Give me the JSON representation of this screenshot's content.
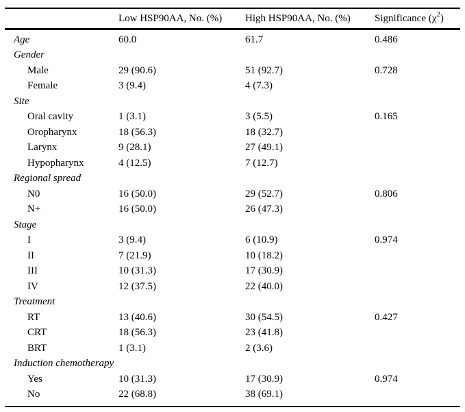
{
  "table": {
    "columns": {
      "label": "",
      "low": "Low HSP90AA, No. (%)",
      "high": "High HSP90AA, No. (%)",
      "significance_prefix": "Significance (",
      "significance_chi": "χ",
      "significance_sup": "2",
      "significance_suffix": ")"
    },
    "rows": [
      {
        "type": "group",
        "label": "Age",
        "low": "60.0",
        "high": "61.7",
        "sig": "0.486"
      },
      {
        "type": "group",
        "label": "Gender",
        "low": "",
        "high": "",
        "sig": ""
      },
      {
        "type": "item",
        "label": "Male",
        "low": "29 (90.6)",
        "high": "51 (92.7)",
        "sig": "0.728"
      },
      {
        "type": "item",
        "label": "Female",
        "low": "3 (9.4)",
        "high": "4 (7.3)",
        "sig": ""
      },
      {
        "type": "group",
        "label": "Site",
        "low": "",
        "high": "",
        "sig": ""
      },
      {
        "type": "item",
        "label": "Oral cavity",
        "low": "1 (3.1)",
        "high": "3 (5.5)",
        "sig": "0.165"
      },
      {
        "type": "item",
        "label": "Oropharynx",
        "low": "18 (56.3)",
        "high": "18 (32.7)",
        "sig": ""
      },
      {
        "type": "item",
        "label": "Larynx",
        "low": "9 (28.1)",
        "high": "27 (49.1)",
        "sig": ""
      },
      {
        "type": "item",
        "label": "Hypopharynx",
        "low": "4 (12.5)",
        "high": "7 (12.7)",
        "sig": ""
      },
      {
        "type": "group",
        "label": "Regional spread",
        "low": "",
        "high": "",
        "sig": ""
      },
      {
        "type": "item",
        "label": "N0",
        "low": "16 (50.0)",
        "high": "29 (52.7)",
        "sig": "0.806"
      },
      {
        "type": "item",
        "label": "N+",
        "low": "16 (50.0)",
        "high": "26 (47.3)",
        "sig": ""
      },
      {
        "type": "group",
        "label": "Stage",
        "low": "",
        "high": "",
        "sig": ""
      },
      {
        "type": "item",
        "label": "I",
        "low": "3 (9.4)",
        "high": "6 (10.9)",
        "sig": "0.974"
      },
      {
        "type": "item",
        "label": "II",
        "low": "7 (21.9)",
        "high": "10 (18.2)",
        "sig": ""
      },
      {
        "type": "item",
        "label": "III",
        "low": "10 (31.3)",
        "high": "17 (30.9)",
        "sig": ""
      },
      {
        "type": "item",
        "label": "IV",
        "low": "12 (37.5)",
        "high": "22 (40.0)",
        "sig": ""
      },
      {
        "type": "group",
        "label": "Treatment",
        "low": "",
        "high": "",
        "sig": ""
      },
      {
        "type": "item",
        "label": "RT",
        "low": "13 (40.6)",
        "high": "30 (54.5)",
        "sig": "0.427"
      },
      {
        "type": "item",
        "label": "CRT",
        "low": "18 (56.3)",
        "high": "23 (41.8)",
        "sig": ""
      },
      {
        "type": "item",
        "label": "BRT",
        "low": "1 (3.1)",
        "high": "2 (3.6)",
        "sig": ""
      },
      {
        "type": "group",
        "label": "Induction chemotherapy",
        "low": "",
        "high": "",
        "sig": ""
      },
      {
        "type": "item",
        "label": "Yes",
        "low": "10 (31.3)",
        "high": "17 (30.9)",
        "sig": "0.974"
      },
      {
        "type": "item",
        "label": "No",
        "low": "22 (68.8)",
        "high": "38 (69.1)",
        "sig": ""
      }
    ]
  },
  "chart_data": {
    "type": "table",
    "columns": [
      "",
      "Low HSP90AA, No. (%)",
      "High HSP90AA, No. (%)",
      "Significance (χ2)"
    ],
    "rows": [
      [
        "Age",
        "60.0",
        "61.7",
        "0.486"
      ],
      [
        "Gender",
        "",
        "",
        ""
      ],
      [
        "Male",
        "29 (90.6)",
        "51 (92.7)",
        "0.728"
      ],
      [
        "Female",
        "3 (9.4)",
        "4 (7.3)",
        ""
      ],
      [
        "Site",
        "",
        "",
        ""
      ],
      [
        "Oral cavity",
        "1 (3.1)",
        "3 (5.5)",
        "0.165"
      ],
      [
        "Oropharynx",
        "18 (56.3)",
        "18 (32.7)",
        ""
      ],
      [
        "Larynx",
        "9 (28.1)",
        "27 (49.1)",
        ""
      ],
      [
        "Hypopharynx",
        "4 (12.5)",
        "7 (12.7)",
        ""
      ],
      [
        "Regional spread",
        "",
        "",
        ""
      ],
      [
        "N0",
        "16 (50.0)",
        "29 (52.7)",
        "0.806"
      ],
      [
        "N+",
        "16 (50.0)",
        "26 (47.3)",
        ""
      ],
      [
        "Stage",
        "",
        "",
        ""
      ],
      [
        "I",
        "3 (9.4)",
        "6 (10.9)",
        "0.974"
      ],
      [
        "II",
        "7 (21.9)",
        "10 (18.2)",
        ""
      ],
      [
        "III",
        "10 (31.3)",
        "17 (30.9)",
        ""
      ],
      [
        "IV",
        "12 (37.5)",
        "22 (40.0)",
        ""
      ],
      [
        "Treatment",
        "",
        "",
        ""
      ],
      [
        "RT",
        "13 (40.6)",
        "30 (54.5)",
        "0.427"
      ],
      [
        "CRT",
        "18 (56.3)",
        "23 (41.8)",
        ""
      ],
      [
        "BRT",
        "1 (3.1)",
        "2 (3.6)",
        ""
      ],
      [
        "Induction chemotherapy",
        "",
        "",
        ""
      ],
      [
        "Yes",
        "10 (31.3)",
        "17 (30.9)",
        "0.974"
      ],
      [
        "No",
        "22 (68.8)",
        "38 (69.1)",
        ""
      ]
    ]
  }
}
